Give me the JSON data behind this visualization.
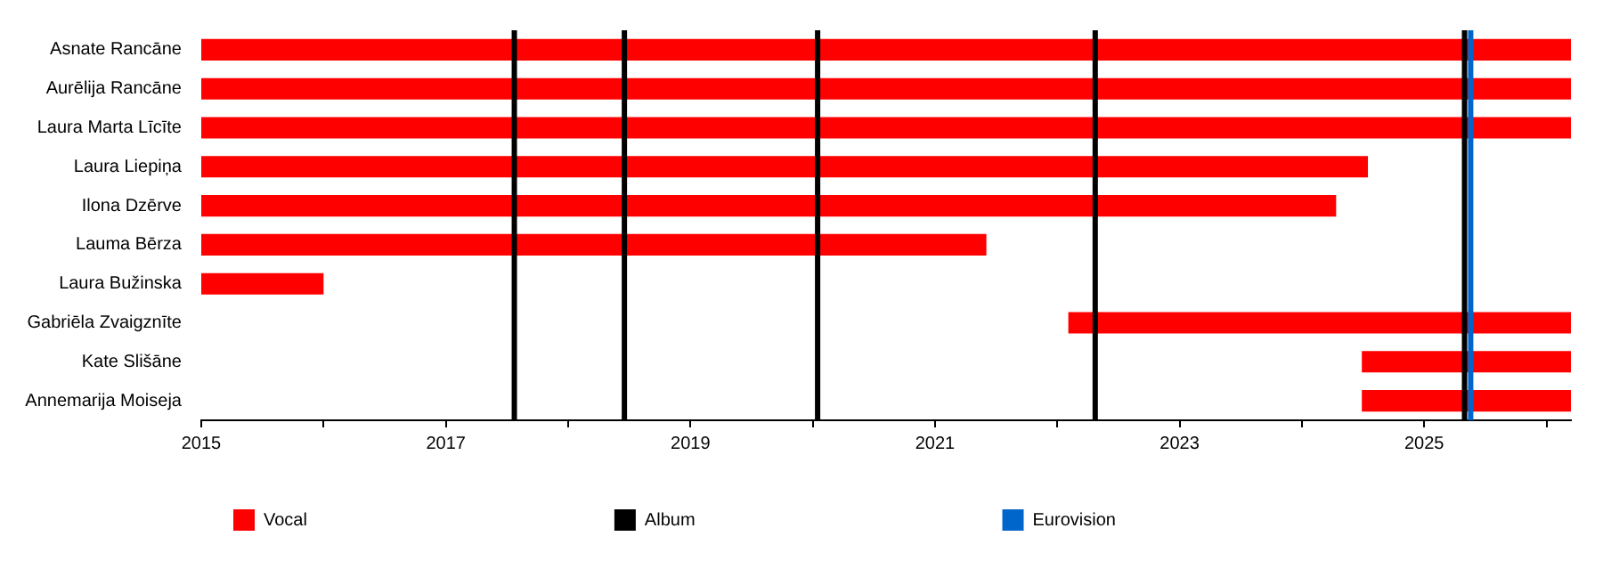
{
  "chart_data": {
    "type": "bar",
    "orientation": "horizontal",
    "categories": [
      "Asnate Rancāne",
      "Aurēlija Rancāne",
      "Laura Marta Līcīte",
      "Laura Liepiņa",
      "Ilona Dzērve",
      "Lauma Bērza",
      "Laura Bužinska",
      "Gabriēla Zvaigznīte",
      "Kate Slišāne",
      "Annemarija Moiseja"
    ],
    "series": [
      {
        "name": "Vocal",
        "color": "#ff0000",
        "base": [
          2015,
          2015,
          2015,
          2015,
          2015,
          2015,
          2015,
          2022.09,
          2024.49,
          2024.49
        ],
        "values": [
          11.2,
          11.2,
          11.2,
          9.54,
          9.28,
          6.42,
          1.0,
          4.11,
          1.71,
          1.71
        ]
      }
    ],
    "xlim": [
      2015,
      2026.2
    ],
    "xticks": [
      2015,
      {
        "value": 2016,
        "label": null
      },
      2017,
      {
        "value": 2018,
        "label": null
      },
      2019,
      {
        "value": 2020,
        "label": null
      },
      2021,
      {
        "value": 2022,
        "label": null
      },
      2023,
      {
        "value": 2024,
        "label": null
      },
      2025,
      {
        "value": 2026,
        "label": null
      }
    ],
    "ref_lines": [
      {
        "axis": "x",
        "value": 2017.56,
        "label": "Album",
        "color": "#000000"
      },
      {
        "axis": "x",
        "value": 2018.46,
        "color": "#000000"
      },
      {
        "axis": "x",
        "value": 2020.04,
        "color": "#000000"
      },
      {
        "axis": "x",
        "value": 2022.31,
        "color": "#000000"
      },
      {
        "axis": "x",
        "value": 2025.33,
        "color": "#000000"
      },
      {
        "axis": "x",
        "value": 2025.38,
        "label": "Eurovision",
        "color": "#0066cc"
      }
    ],
    "legend": "bottom left",
    "grid": false
  }
}
